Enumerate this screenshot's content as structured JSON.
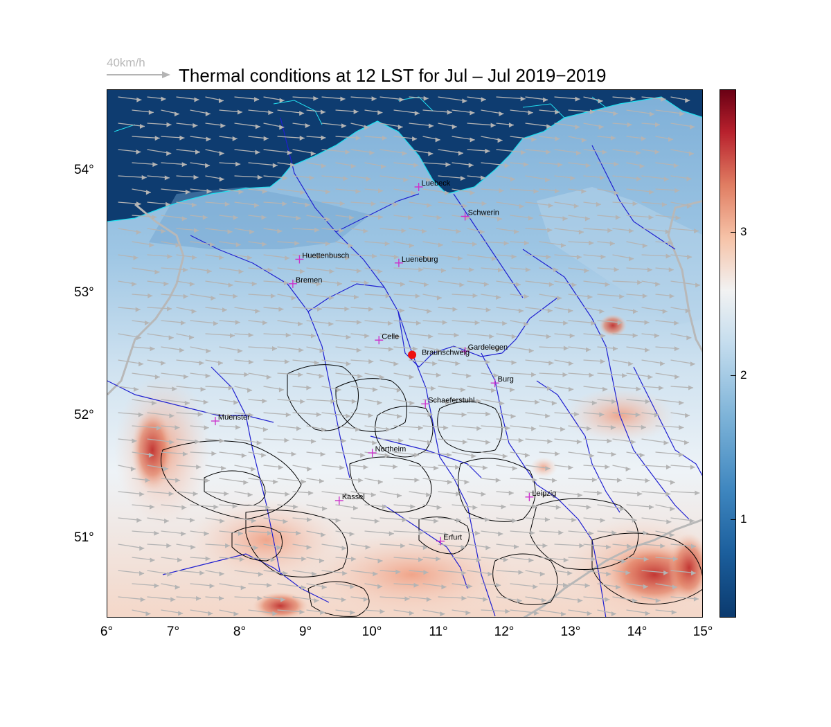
{
  "title": "Thermal conditions at 12 LST for Jul – Jul  2019−2019",
  "wind_scale_label": "40km/h",
  "x_ticks": [
    "6°",
    "7°",
    "8°",
    "9°",
    "10°",
    "11°",
    "12°",
    "13°",
    "14°",
    "15°"
  ],
  "y_ticks": [
    "54°",
    "53°",
    "52°",
    "51°"
  ],
  "colorbar_ticks": [
    "3",
    "2",
    "1"
  ],
  "colors": {
    "sea": "#0b3a6e",
    "coast": "#22e0f0",
    "river": "#1f1fd0",
    "city_marker": "#cc33cc",
    "site_marker": "#ee1111",
    "wind_arrow": "#b4b4b4",
    "border": "#b8b8b8",
    "terrain_contour": "#000000"
  },
  "cities": [
    {
      "name": "Luebeck",
      "lon": 10.7,
      "lat": 53.87
    },
    {
      "name": "Schwerin",
      "lon": 11.4,
      "lat": 53.63
    },
    {
      "name": "Huettenbusch",
      "lon": 8.9,
      "lat": 53.28
    },
    {
      "name": "Lueneburg",
      "lon": 10.4,
      "lat": 53.25
    },
    {
      "name": "Bremen",
      "lon": 8.8,
      "lat": 53.08
    },
    {
      "name": "Celle",
      "lon": 10.1,
      "lat": 52.62
    },
    {
      "name": "Gardelegen",
      "lon": 11.4,
      "lat": 52.53
    },
    {
      "name": "Burg",
      "lon": 11.85,
      "lat": 52.27
    },
    {
      "name": "Muenster",
      "lon": 7.63,
      "lat": 51.96
    },
    {
      "name": "Schaeferstuhl",
      "lon": 10.8,
      "lat": 52.1
    },
    {
      "name": "Northeim",
      "lon": 10.0,
      "lat": 51.7
    },
    {
      "name": "Kassel",
      "lon": 9.5,
      "lat": 51.31
    },
    {
      "name": "Leipzig",
      "lon": 12.37,
      "lat": 51.34
    },
    {
      "name": "Erfurt",
      "lon": 11.03,
      "lat": 50.98
    }
  ],
  "site": {
    "name": "Braunschweig",
    "lon": 10.6,
    "lat": 52.5
  }
}
